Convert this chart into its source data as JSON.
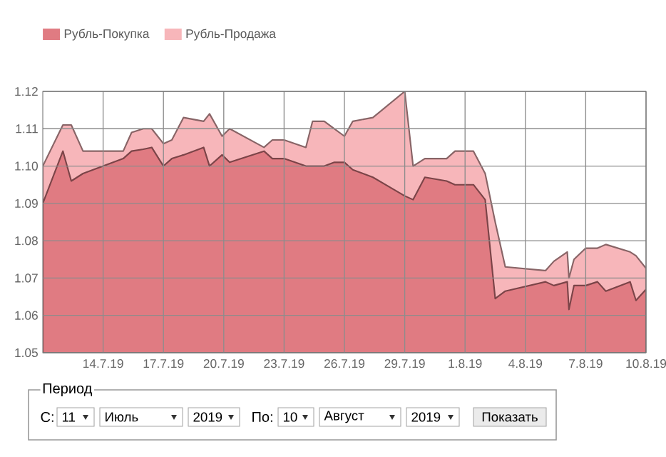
{
  "chart_data": {
    "type": "area",
    "x": [
      "2019-07-11",
      "2019-07-12",
      "2019-07-12T10:00",
      "2019-07-13",
      "2019-07-14",
      "2019-07-15",
      "2019-07-15T10:00",
      "2019-07-16",
      "2019-07-16T10:00",
      "2019-07-17",
      "2019-07-17T10:00",
      "2019-07-18",
      "2019-07-19",
      "2019-07-19T07:00",
      "2019-07-19T22:00",
      "2019-07-20T07:00",
      "2019-07-22",
      "2019-07-22T10:00",
      "2019-07-23",
      "2019-07-24T02:00",
      "2019-07-24T10:00",
      "2019-07-25",
      "2019-07-25T12:00",
      "2019-07-26",
      "2019-07-26T10:00",
      "2019-07-27T10:00",
      "2019-07-29",
      "2019-07-29T10:00",
      "2019-07-30",
      "2019-07-31T02:00",
      "2019-07-31T12:00",
      "2019-08-01T10:00",
      "2019-08-02",
      "2019-08-02T12:00",
      "2019-08-03",
      "2019-08-05",
      "2019-08-05T10:00",
      "2019-08-06T02:00",
      "2019-08-06T04:00",
      "2019-08-06T10:00",
      "2019-08-07",
      "2019-08-07T14:00",
      "2019-08-08",
      "2019-08-09T05:00",
      "2019-08-09T12:00",
      "2019-08-10"
    ],
    "series": [
      {
        "name": "Рубль-Покупка",
        "color": "#e07b82",
        "values": [
          1.09,
          1.104,
          1.096,
          1.098,
          1.1,
          1.102,
          1.104,
          1.1045,
          1.105,
          1.1,
          1.102,
          1.103,
          1.105,
          1.1,
          1.103,
          1.101,
          1.104,
          1.102,
          1.102,
          1.1,
          1.1,
          1.1,
          1.101,
          1.101,
          1.099,
          1.097,
          1.092,
          1.091,
          1.097,
          1.096,
          1.095,
          1.095,
          1.091,
          1.0645,
          1.0665,
          1.069,
          1.068,
          1.069,
          1.0616,
          1.068,
          1.068,
          1.069,
          1.0665,
          1.069,
          1.064,
          1.067
        ]
      },
      {
        "name": "Рубль-Продажа",
        "color": "#f7b6ba",
        "values": [
          1.1,
          1.111,
          1.111,
          1.104,
          1.104,
          1.104,
          1.109,
          1.11,
          1.11,
          1.106,
          1.107,
          1.113,
          1.112,
          1.114,
          1.108,
          1.11,
          1.105,
          1.107,
          1.107,
          1.105,
          1.112,
          1.112,
          1.11,
          1.108,
          1.112,
          1.113,
          1.12,
          1.1,
          1.102,
          1.102,
          1.104,
          1.104,
          1.098,
          1.085,
          1.073,
          1.072,
          1.0745,
          1.077,
          1.07,
          1.075,
          1.078,
          1.078,
          1.079,
          1.077,
          1.076,
          1.0726
        ]
      }
    ],
    "xlim": [
      "2019-07-11",
      "2019-08-10"
    ],
    "xticks": [
      {
        "value": "2019-07-14",
        "label": "14.7.19"
      },
      {
        "value": "2019-07-17",
        "label": "17.7.19"
      },
      {
        "value": "2019-07-20",
        "label": "20.7.19"
      },
      {
        "value": "2019-07-23",
        "label": "23.7.19"
      },
      {
        "value": "2019-07-26",
        "label": "26.7.19"
      },
      {
        "value": "2019-07-29",
        "label": "29.7.19"
      },
      {
        "value": "2019-08-01",
        "label": "1.8.19"
      },
      {
        "value": "2019-08-04",
        "label": "4.8.19"
      },
      {
        "value": "2019-08-07",
        "label": "7.8.19"
      },
      {
        "value": "2019-08-10",
        "label": "10.8.19"
      }
    ],
    "ylim": [
      1.05,
      1.12
    ],
    "yticks": [
      {
        "value": 1.05,
        "label": "1.05"
      },
      {
        "value": 1.06,
        "label": "1.06"
      },
      {
        "value": 1.07,
        "label": "1.07"
      },
      {
        "value": 1.08,
        "label": "1.08"
      },
      {
        "value": 1.09,
        "label": "1.09"
      },
      {
        "value": 1.1,
        "label": "1.10"
      },
      {
        "value": 1.11,
        "label": "1.11"
      },
      {
        "value": 1.12,
        "label": "1.12"
      }
    ],
    "grid": true,
    "legend": "top left",
    "annotations": [
      "Период",
      "С:",
      "11",
      "Июль",
      "2019",
      "По:",
      "10",
      "Август",
      "2019",
      "Показать"
    ]
  }
}
